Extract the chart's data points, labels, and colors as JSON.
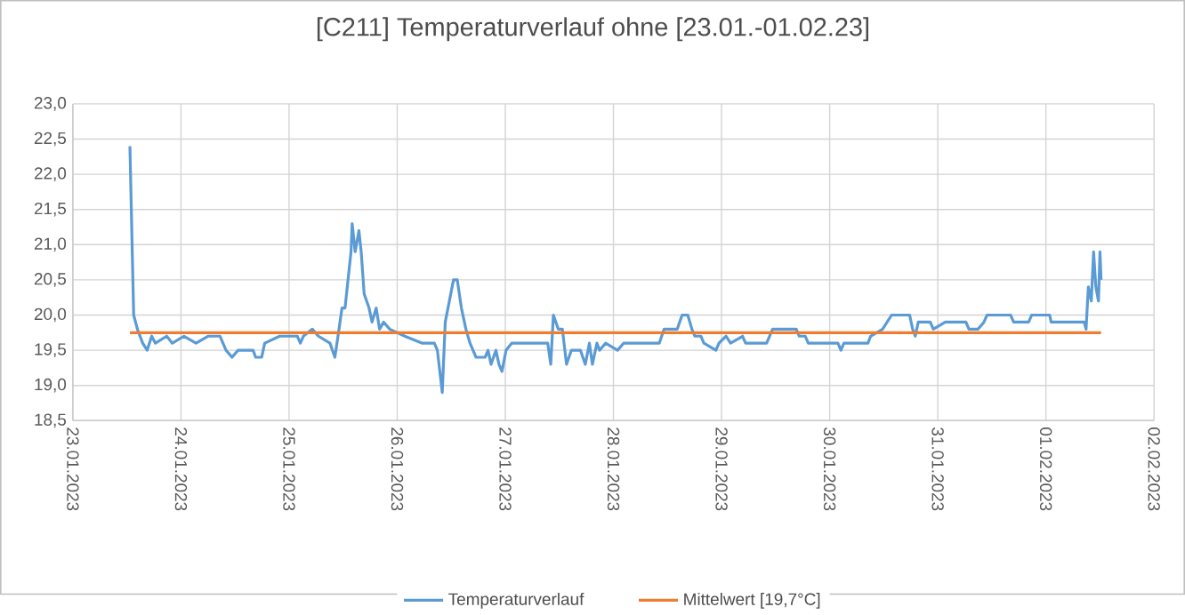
{
  "chart_data": {
    "type": "line",
    "title": "[C211] Temperaturverlauf ohne [23.01.-01.02.23]",
    "xlim": [
      "2023-01-23",
      "2023-02-02"
    ],
    "xticks": [
      {
        "value": "2023-01-23",
        "label": "23.01.2023"
      },
      {
        "value": "2023-01-24",
        "label": "24.01.2023"
      },
      {
        "value": "2023-01-25",
        "label": "25.01.2023"
      },
      {
        "value": "2023-01-26",
        "label": "26.01.2023"
      },
      {
        "value": "2023-01-27",
        "label": "27.01.2023"
      },
      {
        "value": "2023-01-28",
        "label": "28.01.2023"
      },
      {
        "value": "2023-01-29",
        "label": "29.01.2023"
      },
      {
        "value": "2023-01-30",
        "label": "30.01.2023"
      },
      {
        "value": "2023-01-31",
        "label": "31.01.2023"
      },
      {
        "value": "2023-02-01",
        "label": "01.02.2023"
      },
      {
        "value": "2023-02-02",
        "label": "02.02.2023"
      }
    ],
    "ylim": [
      18.5,
      23
    ],
    "yticks": [
      {
        "value": 18.5,
        "label": "18,5"
      },
      {
        "value": 19,
        "label": "19,0"
      },
      {
        "value": 19.5,
        "label": "19,5"
      },
      {
        "value": 20,
        "label": "20,0"
      },
      {
        "value": 20.5,
        "label": "20,5"
      },
      {
        "value": 21,
        "label": "21,0"
      },
      {
        "value": 21.5,
        "label": "21,5"
      },
      {
        "value": 22,
        "label": "22,0"
      },
      {
        "value": 22.5,
        "label": "22,5"
      },
      {
        "value": 23,
        "label": "23,0"
      }
    ],
    "grid": true,
    "legend": "bottom",
    "series": [
      {
        "name": "Temperaturverlauf",
        "color": "#5b9bd5",
        "x": [
          "2023-01-23T12:40",
          "2023-01-23T13:30",
          "2023-01-23T14:20",
          "2023-01-23T15:30",
          "2023-01-23T16:30",
          "2023-01-23T17:30",
          "2023-01-23T18:20",
          "2023-01-23T20:50",
          "2023-01-23T22:05",
          "2023-01-24T00:40",
          "2023-01-24T03:20",
          "2023-01-24T06:00",
          "2023-01-24T08:40",
          "2023-01-24T10:00",
          "2023-01-24T11:20",
          "2023-01-24T12:40",
          "2023-01-24T16:00",
          "2023-01-24T16:35",
          "2023-01-24T17:55",
          "2023-01-24T18:35",
          "2023-01-24T21:55",
          "2023-01-25T01:50",
          "2023-01-25T02:30",
          "2023-01-25T03:10",
          "2023-01-25T05:10",
          "2023-01-25T06:30",
          "2023-01-25T09:05",
          "2023-01-25T10:10",
          "2023-01-25T11:05",
          "2023-01-25T11:45",
          "2023-01-25T12:25",
          "2023-01-25T13:45",
          "2023-01-25T14:00",
          "2023-01-25T14:40",
          "2023-01-25T15:30",
          "2023-01-25T16:00",
          "2023-01-25T16:40",
          "2023-01-25T17:45",
          "2023-01-25T18:25",
          "2023-01-25T19:20",
          "2023-01-25T20:05",
          "2023-01-25T21:00",
          "2023-01-25T22:20",
          "2023-01-26T01:40",
          "2023-01-26T05:35",
          "2023-01-26T08:15",
          "2023-01-26T08:55",
          "2023-01-26T10:00",
          "2023-01-26T10:40",
          "2023-01-26T11:35",
          "2023-01-26T12:30",
          "2023-01-26T13:20",
          "2023-01-26T14:15",
          "2023-01-26T15:15",
          "2023-01-26T16:10",
          "2023-01-26T17:30",
          "2023-01-26T19:30",
          "2023-01-26T20:10",
          "2023-01-26T20:50",
          "2023-01-26T21:55",
          "2023-01-26T22:35",
          "2023-01-26T23:15",
          "2023-01-27T00:10",
          "2023-01-27T01:25",
          "2023-01-27T09:25",
          "2023-01-27T10:05",
          "2023-01-27T10:40",
          "2023-01-27T11:45",
          "2023-01-27T12:40",
          "2023-01-27T13:35",
          "2023-01-27T14:40",
          "2023-01-27T16:40",
          "2023-01-27T17:45",
          "2023-01-27T18:40",
          "2023-01-27T19:20",
          "2023-01-27T20:20",
          "2023-01-27T20:55",
          "2023-01-27T22:15",
          "2023-01-28T00:55",
          "2023-01-28T02:15",
          "2023-01-28T10:10",
          "2023-01-28T11:15",
          "2023-01-28T14:10",
          "2023-01-28T15:15",
          "2023-01-28T16:30",
          "2023-01-28T17:25",
          "2023-01-28T18:05",
          "2023-01-28T19:25",
          "2023-01-28T20:05",
          "2023-01-28T22:45",
          "2023-01-28T23:25",
          "2023-01-29T01:00",
          "2023-01-29T02:00",
          "2023-01-29T04:40",
          "2023-01-29T05:20",
          "2023-01-29T10:00",
          "2023-01-29T11:20",
          "2023-01-29T16:35",
          "2023-01-29T17:15",
          "2023-01-29T18:35",
          "2023-01-29T19:15",
          "2023-01-30T01:50",
          "2023-01-30T02:30",
          "2023-01-30T03:10",
          "2023-01-30T08:30",
          "2023-01-30T09:05",
          "2023-01-30T11:45",
          "2023-01-30T13:45",
          "2023-01-30T17:45",
          "2023-01-30T18:25",
          "2023-01-30T19:00",
          "2023-01-30T19:40",
          "2023-01-30T22:20",
          "2023-01-30T23:00",
          "2023-01-31T01:40",
          "2023-01-31T06:15",
          "2023-01-31T06:55",
          "2023-01-31T08:55",
          "2023-01-31T10:15",
          "2023-01-31T10:55",
          "2023-01-31T16:10",
          "2023-01-31T16:50",
          "2023-01-31T20:10",
          "2023-01-31T20:50",
          "2023-02-01T00:50",
          "2023-02-01T01:10",
          "2023-02-01T08:30",
          "2023-02-01T08:55",
          "2023-02-01T09:25",
          "2023-02-01T10:05",
          "2023-02-01T10:35",
          "2023-02-01T11:05",
          "2023-02-01T11:40",
          "2023-02-01T12:00",
          "2023-02-01T12:15"
        ],
        "values": [
          22.4,
          20.0,
          19.8,
          19.6,
          19.5,
          19.7,
          19.6,
          19.7,
          19.6,
          19.7,
          19.6,
          19.7,
          19.7,
          19.5,
          19.4,
          19.5,
          19.5,
          19.4,
          19.4,
          19.6,
          19.7,
          19.7,
          19.6,
          19.7,
          19.8,
          19.7,
          19.6,
          19.4,
          19.8,
          20.1,
          20.1,
          20.9,
          21.3,
          20.9,
          21.2,
          20.9,
          20.3,
          20.1,
          19.9,
          20.1,
          19.8,
          19.9,
          19.8,
          19.7,
          19.6,
          19.6,
          19.5,
          18.9,
          19.9,
          20.2,
          20.5,
          20.5,
          20.1,
          19.8,
          19.6,
          19.4,
          19.4,
          19.5,
          19.3,
          19.5,
          19.3,
          19.2,
          19.5,
          19.6,
          19.6,
          19.3,
          20.0,
          19.8,
          19.8,
          19.3,
          19.5,
          19.5,
          19.3,
          19.6,
          19.3,
          19.6,
          19.5,
          19.6,
          19.5,
          19.6,
          19.6,
          19.8,
          19.8,
          20.0,
          20.0,
          19.8,
          19.7,
          19.7,
          19.6,
          19.5,
          19.6,
          19.7,
          19.6,
          19.7,
          19.6,
          19.6,
          19.8,
          19.8,
          19.7,
          19.7,
          19.6,
          19.6,
          19.5,
          19.6,
          19.6,
          19.7,
          19.8,
          20.0,
          20.0,
          19.8,
          19.7,
          19.9,
          19.9,
          19.8,
          19.9,
          19.9,
          19.8,
          19.8,
          19.9,
          20.0,
          20.0,
          19.9,
          19.9,
          20.0,
          20.0,
          19.9,
          19.9,
          19.8,
          20.4,
          20.2,
          20.9,
          20.4,
          20.2,
          20.9,
          20.5
        ]
      },
      {
        "name": "Mittelwert [19,7°C]",
        "color": "#ed7d31",
        "x": [
          "2023-01-23T12:40",
          "2023-02-01T12:15"
        ],
        "values": [
          19.75,
          19.75
        ]
      }
    ]
  }
}
